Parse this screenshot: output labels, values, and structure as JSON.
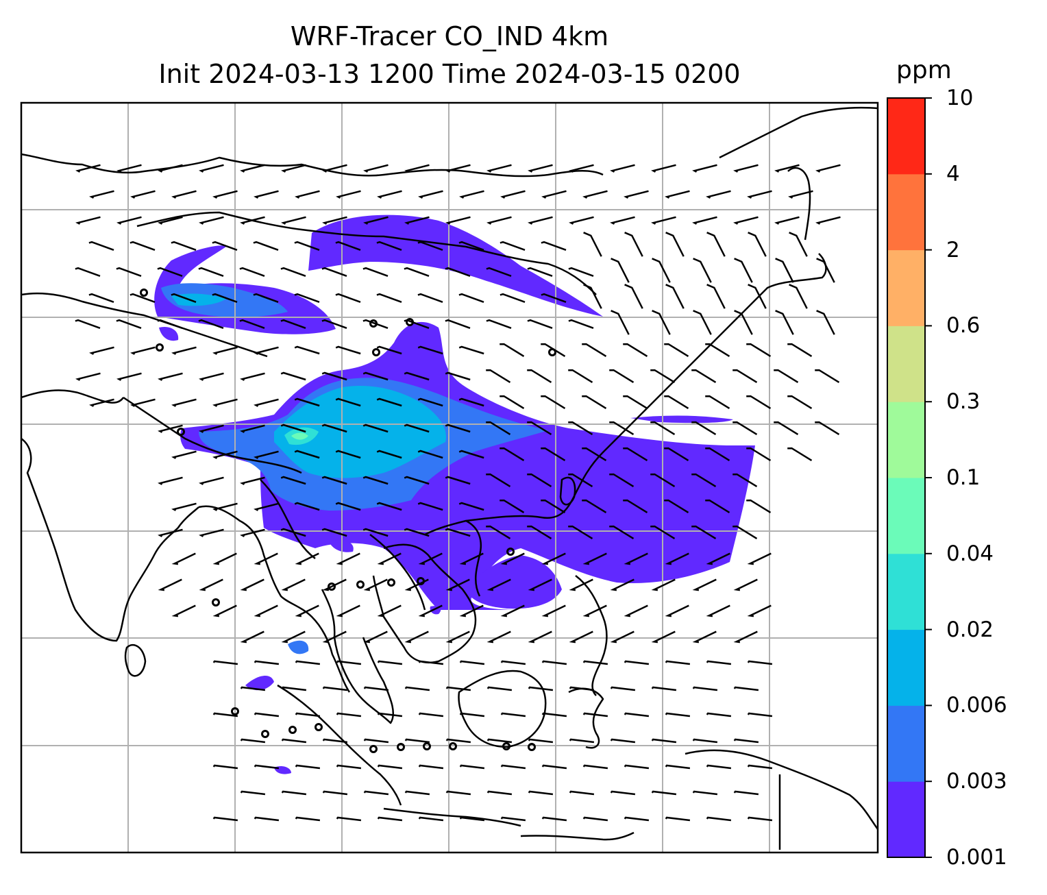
{
  "title": {
    "line1": "WRF-Tracer CO_IND 4km",
    "line2": "Init 2024-03-13 1200 Time 2024-03-15 0200"
  },
  "colorbar": {
    "unit": "ppm",
    "levels": [
      "0.001",
      "0.003",
      "0.006",
      "0.02",
      "0.04",
      "0.1",
      "0.3",
      "0.6",
      "2",
      "4",
      "10"
    ],
    "colors": [
      "#6129ff",
      "#3377f5",
      "#05b2ea",
      "#2fe0d6",
      "#6bfbb9",
      "#9ffa9a",
      "#cfe289",
      "#ffb066",
      "#ff733c",
      "#ff2817"
    ]
  },
  "map": {
    "gridlines": true,
    "coastline_color": "#000000",
    "gridline_color": "#b0b0b0",
    "calm_symbol": "circle",
    "wind_symbol": "barb"
  }
}
